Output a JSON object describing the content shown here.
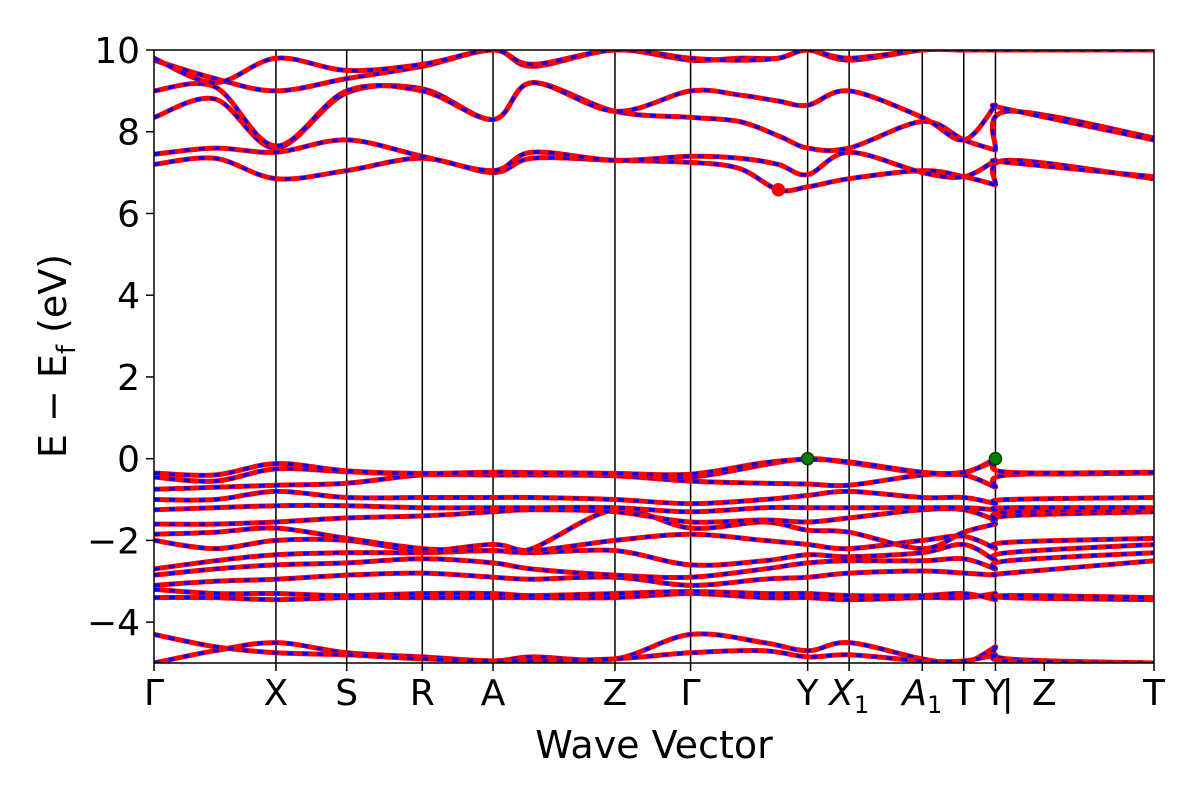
{
  "chart_data": {
    "type": "line",
    "xlabel": "Wave Vector",
    "ylabel": "E − E",
    "ylabel_sub": "f",
    "ylabel_unit": " (eV)",
    "ylim": [
      -5,
      10
    ],
    "yticks": [
      -4,
      -2,
      0,
      2,
      4,
      6,
      8,
      10
    ],
    "ytick_labels": [
      "−4",
      "−2",
      "0",
      "2",
      "4",
      "6",
      "8",
      "10"
    ],
    "kpoints": [
      {
        "label": "Γ",
        "x": 0.0
      },
      {
        "label": "X",
        "x": 1.0
      },
      {
        "label": "S",
        "x": 1.58
      },
      {
        "label": "R",
        "x": 2.2
      },
      {
        "label": "A",
        "x": 2.78
      },
      {
        "label": "Z",
        "x": 3.78
      },
      {
        "label": "Γ",
        "x": 4.4
      },
      {
        "label": "Y",
        "x": 5.36
      },
      {
        "label": "X",
        "sub": "1",
        "x": 5.7
      },
      {
        "label": "A",
        "sub": "1",
        "x": 6.3
      },
      {
        "label": "T",
        "x": 6.64
      },
      {
        "label": "Y",
        "x": 6.9
      },
      {
        "label": "|",
        "x": 7.0
      },
      {
        "label": "Z",
        "x": 7.3
      },
      {
        "label": "T",
        "x": 8.2
      }
    ],
    "vlines": [
      1.0,
      1.58,
      2.2,
      2.78,
      3.78,
      4.4,
      5.36,
      5.7,
      6.3,
      6.64,
      6.9
    ],
    "xlim": [
      0,
      8.2
    ],
    "series_style": {
      "spin_up": "#ff0000",
      "spin_down": "#0000ff"
    },
    "markers": [
      {
        "type": "CBM",
        "x": 5.12,
        "y": 6.58,
        "color": "#ff0000"
      },
      {
        "type": "VBM",
        "x": 5.36,
        "y": 0.0,
        "color": "#008000"
      },
      {
        "type": "VBM",
        "x": 6.9,
        "y": 0.0,
        "color": "#008000"
      }
    ],
    "bands": [
      {
        "x": [
          0,
          0.5,
          1.0,
          1.58,
          2.2,
          2.78,
          3.1,
          3.78,
          4.4,
          5.0,
          5.36,
          5.7,
          6.3,
          6.64,
          6.9,
          6.9,
          7.0,
          8.2
        ],
        "y": [
          -5,
          -4.7,
          -4.5,
          -4.75,
          -4.85,
          -4.95,
          -4.85,
          -4.9,
          -4.3,
          -4.5,
          -4.7,
          -4.5,
          -4.9,
          -5,
          -4.6,
          -4.6,
          -4.9,
          -5
        ]
      },
      {
        "x": [
          0,
          0.5,
          1.0,
          1.58,
          2.2,
          2.78,
          3.1,
          3.78,
          4.4,
          5.0,
          5.36,
          5.7,
          6.3,
          6.64,
          6.9,
          6.9,
          7.0,
          8.2
        ],
        "y": [
          -4.3,
          -4.6,
          -4.75,
          -4.8,
          -4.9,
          -4.95,
          -4.95,
          -4.9,
          -4.75,
          -4.7,
          -4.85,
          -4.8,
          -4.95,
          -4.95,
          -4.8,
          -4.8,
          -4.95,
          -5
        ]
      },
      {
        "x": [
          0,
          0.5,
          1.0,
          1.58,
          2.2,
          2.78,
          3.1,
          3.78,
          4.4,
          5.0,
          5.36,
          5.7,
          6.3,
          6.64,
          6.9,
          6.9,
          7.0,
          8.2
        ],
        "y": [
          -3.4,
          -3.4,
          -3.45,
          -3.4,
          -3.4,
          -3.4,
          -3.4,
          -3.4,
          -3.3,
          -3.4,
          -3.4,
          -3.45,
          -3.4,
          -3.4,
          -3.3,
          -3.3,
          -3.4,
          -3.45
        ]
      },
      {
        "x": [
          0,
          0.5,
          1.0,
          1.58,
          2.2,
          2.78,
          3.1,
          3.78,
          4.4,
          5.0,
          5.36,
          5.7,
          6.3,
          6.64,
          6.9,
          6.9,
          7.0,
          8.2
        ],
        "y": [
          -3.2,
          -3.3,
          -3.3,
          -3.35,
          -3.3,
          -3.3,
          -3.35,
          -3.3,
          -3.25,
          -3.3,
          -3.3,
          -3.35,
          -3.35,
          -3.3,
          -3.45,
          -3.45,
          -3.35,
          -3.4
        ]
      },
      {
        "x": [
          0,
          0.5,
          1.0,
          1.58,
          2.2,
          2.78,
          3.1,
          3.78,
          4.4,
          5.0,
          5.36,
          5.7,
          6.3,
          6.64,
          6.9,
          6.9,
          7.0,
          8.2
        ],
        "y": [
          -3.1,
          -3.0,
          -2.95,
          -2.85,
          -2.8,
          -2.9,
          -2.95,
          -2.9,
          -3.1,
          -2.95,
          -2.9,
          -2.8,
          -2.75,
          -2.8,
          -2.85,
          -2.85,
          -2.8,
          -2.5
        ]
      },
      {
        "x": [
          0,
          0.5,
          1.0,
          1.58,
          2.2,
          2.78,
          3.1,
          3.78,
          4.4,
          5.0,
          5.36,
          5.7,
          6.3,
          6.64,
          6.9,
          6.9,
          7.0,
          8.2
        ],
        "y": [
          -2.85,
          -2.7,
          -2.6,
          -2.55,
          -2.45,
          -2.55,
          -2.7,
          -2.85,
          -2.9,
          -2.7,
          -2.55,
          -2.5,
          -2.5,
          -2.45,
          -2.7,
          -2.7,
          -2.5,
          -2.3
        ]
      },
      {
        "x": [
          0,
          0.5,
          1.0,
          1.58,
          2.2,
          2.78,
          3.1,
          3.78,
          4.4,
          5.0,
          5.36,
          5.7,
          6.3,
          6.64,
          6.9,
          6.9,
          7.0,
          8.2
        ],
        "y": [
          -2.7,
          -2.5,
          -2.35,
          -2.3,
          -2.3,
          -2.25,
          -2.3,
          -2.25,
          -2.6,
          -2.5,
          -2.35,
          -2.4,
          -2.3,
          -2.1,
          -2.5,
          -2.5,
          -2.3,
          -2.1
        ]
      },
      {
        "x": [
          0,
          0.5,
          1.0,
          1.58,
          2.2,
          2.78,
          3.1,
          3.78,
          4.4,
          5.0,
          5.36,
          5.7,
          6.3,
          6.64,
          6.9,
          6.9,
          7.0,
          8.2
        ],
        "y": [
          -2.0,
          -2.2,
          -2.0,
          -2.0,
          -2.25,
          -2.1,
          -2.25,
          -2.0,
          -1.85,
          -2.0,
          -2.1,
          -2.2,
          -2.0,
          -1.9,
          -2.2,
          -2.2,
          -2.05,
          -1.95
        ]
      },
      {
        "x": [
          0,
          0.5,
          1.0,
          1.58,
          2.2,
          2.78,
          3.1,
          3.78,
          4.4,
          5.0,
          5.36,
          5.7,
          6.3,
          6.64,
          6.9,
          6.9,
          7.0,
          8.2
        ],
        "y": [
          -1.85,
          -1.8,
          -1.7,
          -1.95,
          -2.2,
          -2.25,
          -2.2,
          -1.25,
          -1.7,
          -1.55,
          -1.75,
          -1.8,
          -2.2,
          -1.8,
          -1.6,
          -1.6,
          -1.4,
          -1.3
        ]
      },
      {
        "x": [
          0,
          0.5,
          1.0,
          1.58,
          2.2,
          2.78,
          3.1,
          3.78,
          4.4,
          5.0,
          5.36,
          5.7,
          6.3,
          6.64,
          6.9,
          6.9,
          7.0,
          8.2
        ],
        "y": [
          -1.6,
          -1.6,
          -1.55,
          -1.45,
          -1.4,
          -1.3,
          -1.25,
          -1.3,
          -1.55,
          -1.5,
          -1.55,
          -1.45,
          -1.25,
          -1.25,
          -1.5,
          -1.5,
          -1.3,
          -1.25
        ]
      },
      {
        "x": [
          0,
          0.5,
          1.0,
          1.58,
          2.2,
          2.78,
          3.1,
          3.78,
          4.4,
          5.0,
          5.36,
          5.7,
          6.3,
          6.64,
          6.9,
          6.9,
          7.0,
          8.2
        ],
        "y": [
          -1.25,
          -1.2,
          -1.15,
          -1.15,
          -1.2,
          -1.2,
          -1.2,
          -1.2,
          -1.3,
          -1.2,
          -1.2,
          -1.2,
          -1.2,
          -1.2,
          -1.25,
          -1.25,
          -1.2,
          -1.2
        ]
      },
      {
        "x": [
          0,
          0.5,
          1.0,
          1.58,
          2.2,
          2.78,
          3.1,
          3.78,
          4.4,
          5.0,
          5.36,
          5.7,
          6.3,
          6.64,
          6.9,
          6.9,
          7.0,
          8.2
        ],
        "y": [
          -1.0,
          -1.0,
          -0.8,
          -0.95,
          -0.95,
          -0.95,
          -0.95,
          -1.0,
          -1.1,
          -1.0,
          -0.9,
          -0.8,
          -0.95,
          -0.95,
          -1.1,
          -1.1,
          -1.0,
          -0.95
        ]
      },
      {
        "x": [
          0,
          0.5,
          1.0,
          1.58,
          2.2,
          2.78,
          3.1,
          3.78,
          4.4,
          5.0,
          5.36,
          5.7,
          6.3,
          6.64,
          6.9,
          6.9,
          7.0,
          8.2
        ],
        "y": [
          -0.75,
          -0.7,
          -0.65,
          -0.6,
          -0.4,
          -0.4,
          -0.4,
          -0.42,
          -0.55,
          -0.6,
          -0.62,
          -0.65,
          -0.4,
          -0.4,
          -0.7,
          -0.7,
          -0.4,
          -0.35
        ]
      },
      {
        "x": [
          0,
          0.5,
          1.0,
          1.58,
          2.2,
          2.78,
          3.1,
          3.78,
          4.4,
          5.0,
          5.36,
          5.7,
          6.3,
          6.64,
          6.9,
          6.9,
          7.0,
          8.2
        ],
        "y": [
          -0.45,
          -0.55,
          -0.25,
          -0.32,
          -0.38,
          -0.35,
          -0.36,
          -0.38,
          -0.45,
          -0.15,
          0.0,
          -0.1,
          -0.35,
          -0.35,
          0.0,
          0.0,
          -0.35,
          -0.35
        ]
      },
      {
        "x": [
          0,
          0.5,
          1.0,
          1.58,
          2.2,
          2.78,
          3.1,
          3.78,
          4.4,
          5.0,
          5.36,
          5.7,
          6.3,
          6.64,
          6.9,
          6.9,
          7.0,
          8.2
        ],
        "y": [
          -0.35,
          -0.4,
          -0.12,
          -0.3,
          -0.36,
          -0.33,
          -0.34,
          -0.36,
          -0.38,
          -0.1,
          -0.02,
          -0.08,
          -0.33,
          -0.33,
          -0.05,
          -0.05,
          -0.33,
          -0.33
        ]
      },
      {
        "x": [
          0,
          0.5,
          1.0,
          1.58,
          2.2,
          2.78,
          3.1,
          3.78,
          4.4,
          4.8,
          5.12,
          5.36,
          5.7,
          6.3,
          6.64,
          6.9,
          6.9,
          7.0,
          8.2
        ],
        "y": [
          7.2,
          7.35,
          6.85,
          7.05,
          7.35,
          7.0,
          7.35,
          7.3,
          7.25,
          7.1,
          6.58,
          6.65,
          6.85,
          7.05,
          6.9,
          6.7,
          6.7,
          7.3,
          6.85
        ]
      },
      {
        "x": [
          0,
          0.5,
          1.0,
          1.58,
          2.2,
          2.78,
          3.1,
          3.78,
          4.4,
          4.8,
          5.12,
          5.36,
          5.7,
          6.3,
          6.64,
          6.9,
          6.9,
          7.0,
          8.2
        ],
        "y": [
          7.45,
          7.6,
          7.5,
          7.8,
          7.4,
          7.05,
          7.5,
          7.3,
          7.4,
          7.35,
          7.2,
          6.95,
          7.5,
          7.0,
          6.9,
          7.3,
          7.3,
          7.25,
          6.9
        ]
      },
      {
        "x": [
          0,
          0.5,
          1.0,
          1.58,
          2.2,
          2.78,
          3.1,
          3.78,
          4.4,
          4.8,
          5.12,
          5.36,
          5.7,
          6.3,
          6.64,
          6.9,
          6.9,
          7.0,
          8.2
        ],
        "y": [
          8.35,
          8.8,
          7.6,
          8.95,
          9.05,
          8.3,
          9.2,
          8.5,
          8.35,
          8.25,
          7.9,
          7.6,
          7.6,
          8.25,
          7.8,
          7.55,
          7.55,
          8.5,
          7.85
        ]
      },
      {
        "x": [
          0,
          0.5,
          1.0,
          1.58,
          2.2,
          2.78,
          3.1,
          3.78,
          4.4,
          4.8,
          5.12,
          5.36,
          5.7,
          6.3,
          6.64,
          6.9,
          6.9,
          7.0,
          8.2
        ],
        "y": [
          9.0,
          9.1,
          7.65,
          9.0,
          9.0,
          8.3,
          9.2,
          8.5,
          9.0,
          8.9,
          8.75,
          8.65,
          9.0,
          8.35,
          7.8,
          8.65,
          8.65,
          8.55,
          7.8
        ]
      },
      {
        "x": [
          0,
          0.5,
          1.0,
          1.58,
          2.2,
          2.78,
          3.1,
          3.78,
          4.4,
          4.8,
          5.12,
          5.36,
          5.7,
          6.3,
          6.64,
          6.9,
          6.9,
          7.0,
          8.2
        ],
        "y": [
          9.75,
          9.3,
          9.0,
          9.3,
          9.6,
          10.0,
          9.6,
          10.0,
          9.75,
          9.8,
          9.8,
          10.0,
          9.75,
          10.0,
          10.0,
          10.0,
          10.0,
          10.0,
          10.0
        ]
      },
      {
        "x": [
          0,
          0.5,
          1.0,
          1.58,
          2.2,
          2.78,
          3.1,
          3.78,
          4.4,
          4.8,
          5.12,
          5.36,
          5.7,
          6.3,
          6.64,
          6.9,
          6.9,
          7.0,
          8.2
        ],
        "y": [
          9.8,
          9.2,
          9.8,
          9.5,
          9.65,
          10.0,
          9.65,
          10.0,
          9.8,
          9.75,
          9.8,
          10.0,
          9.8,
          10.0,
          10.0,
          10.0,
          10.0,
          10.0,
          10.0
        ]
      }
    ]
  }
}
